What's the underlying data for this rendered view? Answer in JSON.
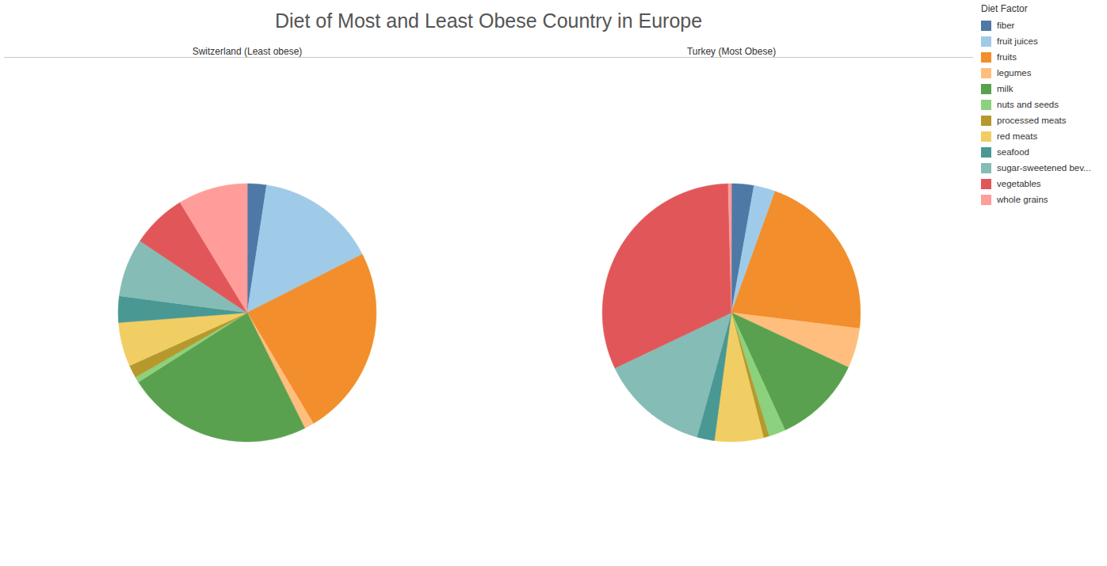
{
  "chart_data": {
    "type": "pie",
    "title": "Diet of Most and Least Obese Country in Europe",
    "legend_title": "Diet Factor",
    "legend": "top-right",
    "categories": [
      "fiber",
      "fruit juices",
      "fruits",
      "legumes",
      "milk",
      "nuts and seeds",
      "processed meats",
      "red meats",
      "seafood",
      "sugar-sweetened bev...",
      "vegetables",
      "whole grains"
    ],
    "colors": [
      "#4e79a7",
      "#a0cbe8",
      "#f28e2b",
      "#ffbe7d",
      "#59a14f",
      "#8cd17d",
      "#b6992d",
      "#f1ce63",
      "#499894",
      "#86bcb6",
      "#e15759",
      "#ff9d9a"
    ],
    "series": [
      {
        "name": "Switzerland (Least obese)",
        "values": [
          2.4,
          15.1,
          23.9,
          1.2,
          23.3,
          0.7,
          1.6,
          5.5,
          3.3,
          7.3,
          6.9,
          8.7
        ]
      },
      {
        "name": "Turkey (Most Obese)",
        "values": [
          2.8,
          2.7,
          21.4,
          5.0,
          11.2,
          2.1,
          0.7,
          6.1,
          2.2,
          13.6,
          31.6,
          0.4
        ]
      }
    ]
  }
}
